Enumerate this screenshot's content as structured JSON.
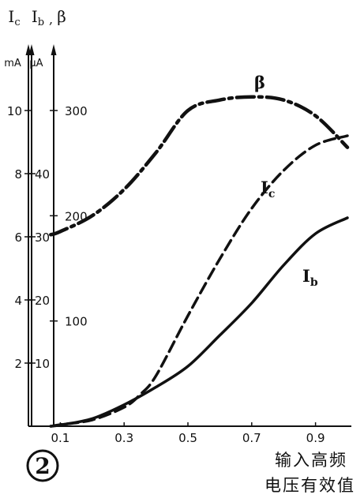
{
  "chart_data": {
    "type": "line",
    "figure_number": "2",
    "xlabel": [
      "输入高频",
      "电压有效值"
    ],
    "xlim": [
      0,
      1.0
    ],
    "x_ticks": [
      0.1,
      0.3,
      0.5,
      0.7,
      0.9
    ],
    "axes": [
      {
        "name": "Ic",
        "symbol": "I",
        "subscript": "c",
        "unit": "mA",
        "range": [
          0,
          13.5
        ],
        "ticks": [
          2,
          4,
          6,
          8,
          10
        ]
      },
      {
        "name": "Ib",
        "symbol": "I",
        "subscript": "b",
        "unit": "μA",
        "range": [
          0,
          67.5
        ],
        "ticks": [
          10,
          20,
          30,
          40
        ]
      },
      {
        "name": "β",
        "symbol": "β",
        "unit": "",
        "range": [
          0,
          405
        ],
        "ticks": [
          100,
          200,
          300
        ]
      }
    ],
    "series": [
      {
        "name": "β",
        "label_symbol": "β",
        "label_sub": "",
        "axis": "β",
        "style": "dash-dot",
        "x": [
          0.07,
          0.1,
          0.2,
          0.3,
          0.4,
          0.5,
          0.6,
          0.7,
          0.8,
          0.9,
          1.0
        ],
        "y": [
          182,
          185,
          200,
          225,
          260,
          300,
          310,
          313,
          310,
          295,
          265
        ]
      },
      {
        "name": "Ic",
        "label_symbol": "I",
        "label_sub": "c",
        "axis": "Ic",
        "style": "dashed",
        "x": [
          0.07,
          0.1,
          0.2,
          0.3,
          0.35,
          0.4,
          0.5,
          0.6,
          0.7,
          0.8,
          0.9,
          1.0
        ],
        "y": [
          0,
          0.05,
          0.2,
          0.6,
          1.0,
          1.6,
          3.5,
          5.3,
          6.9,
          8.1,
          8.9,
          9.2
        ]
      },
      {
        "name": "Ib",
        "label_symbol": "I",
        "label_sub": "b",
        "axis": "Ib",
        "style": "solid",
        "x": [
          0.07,
          0.1,
          0.2,
          0.3,
          0.4,
          0.5,
          0.6,
          0.7,
          0.8,
          0.9,
          1.0
        ],
        "y": [
          0,
          0.2,
          1.2,
          3.4,
          6.2,
          9.5,
          14.4,
          19.5,
          25.5,
          30.5,
          33.0
        ]
      }
    ]
  }
}
